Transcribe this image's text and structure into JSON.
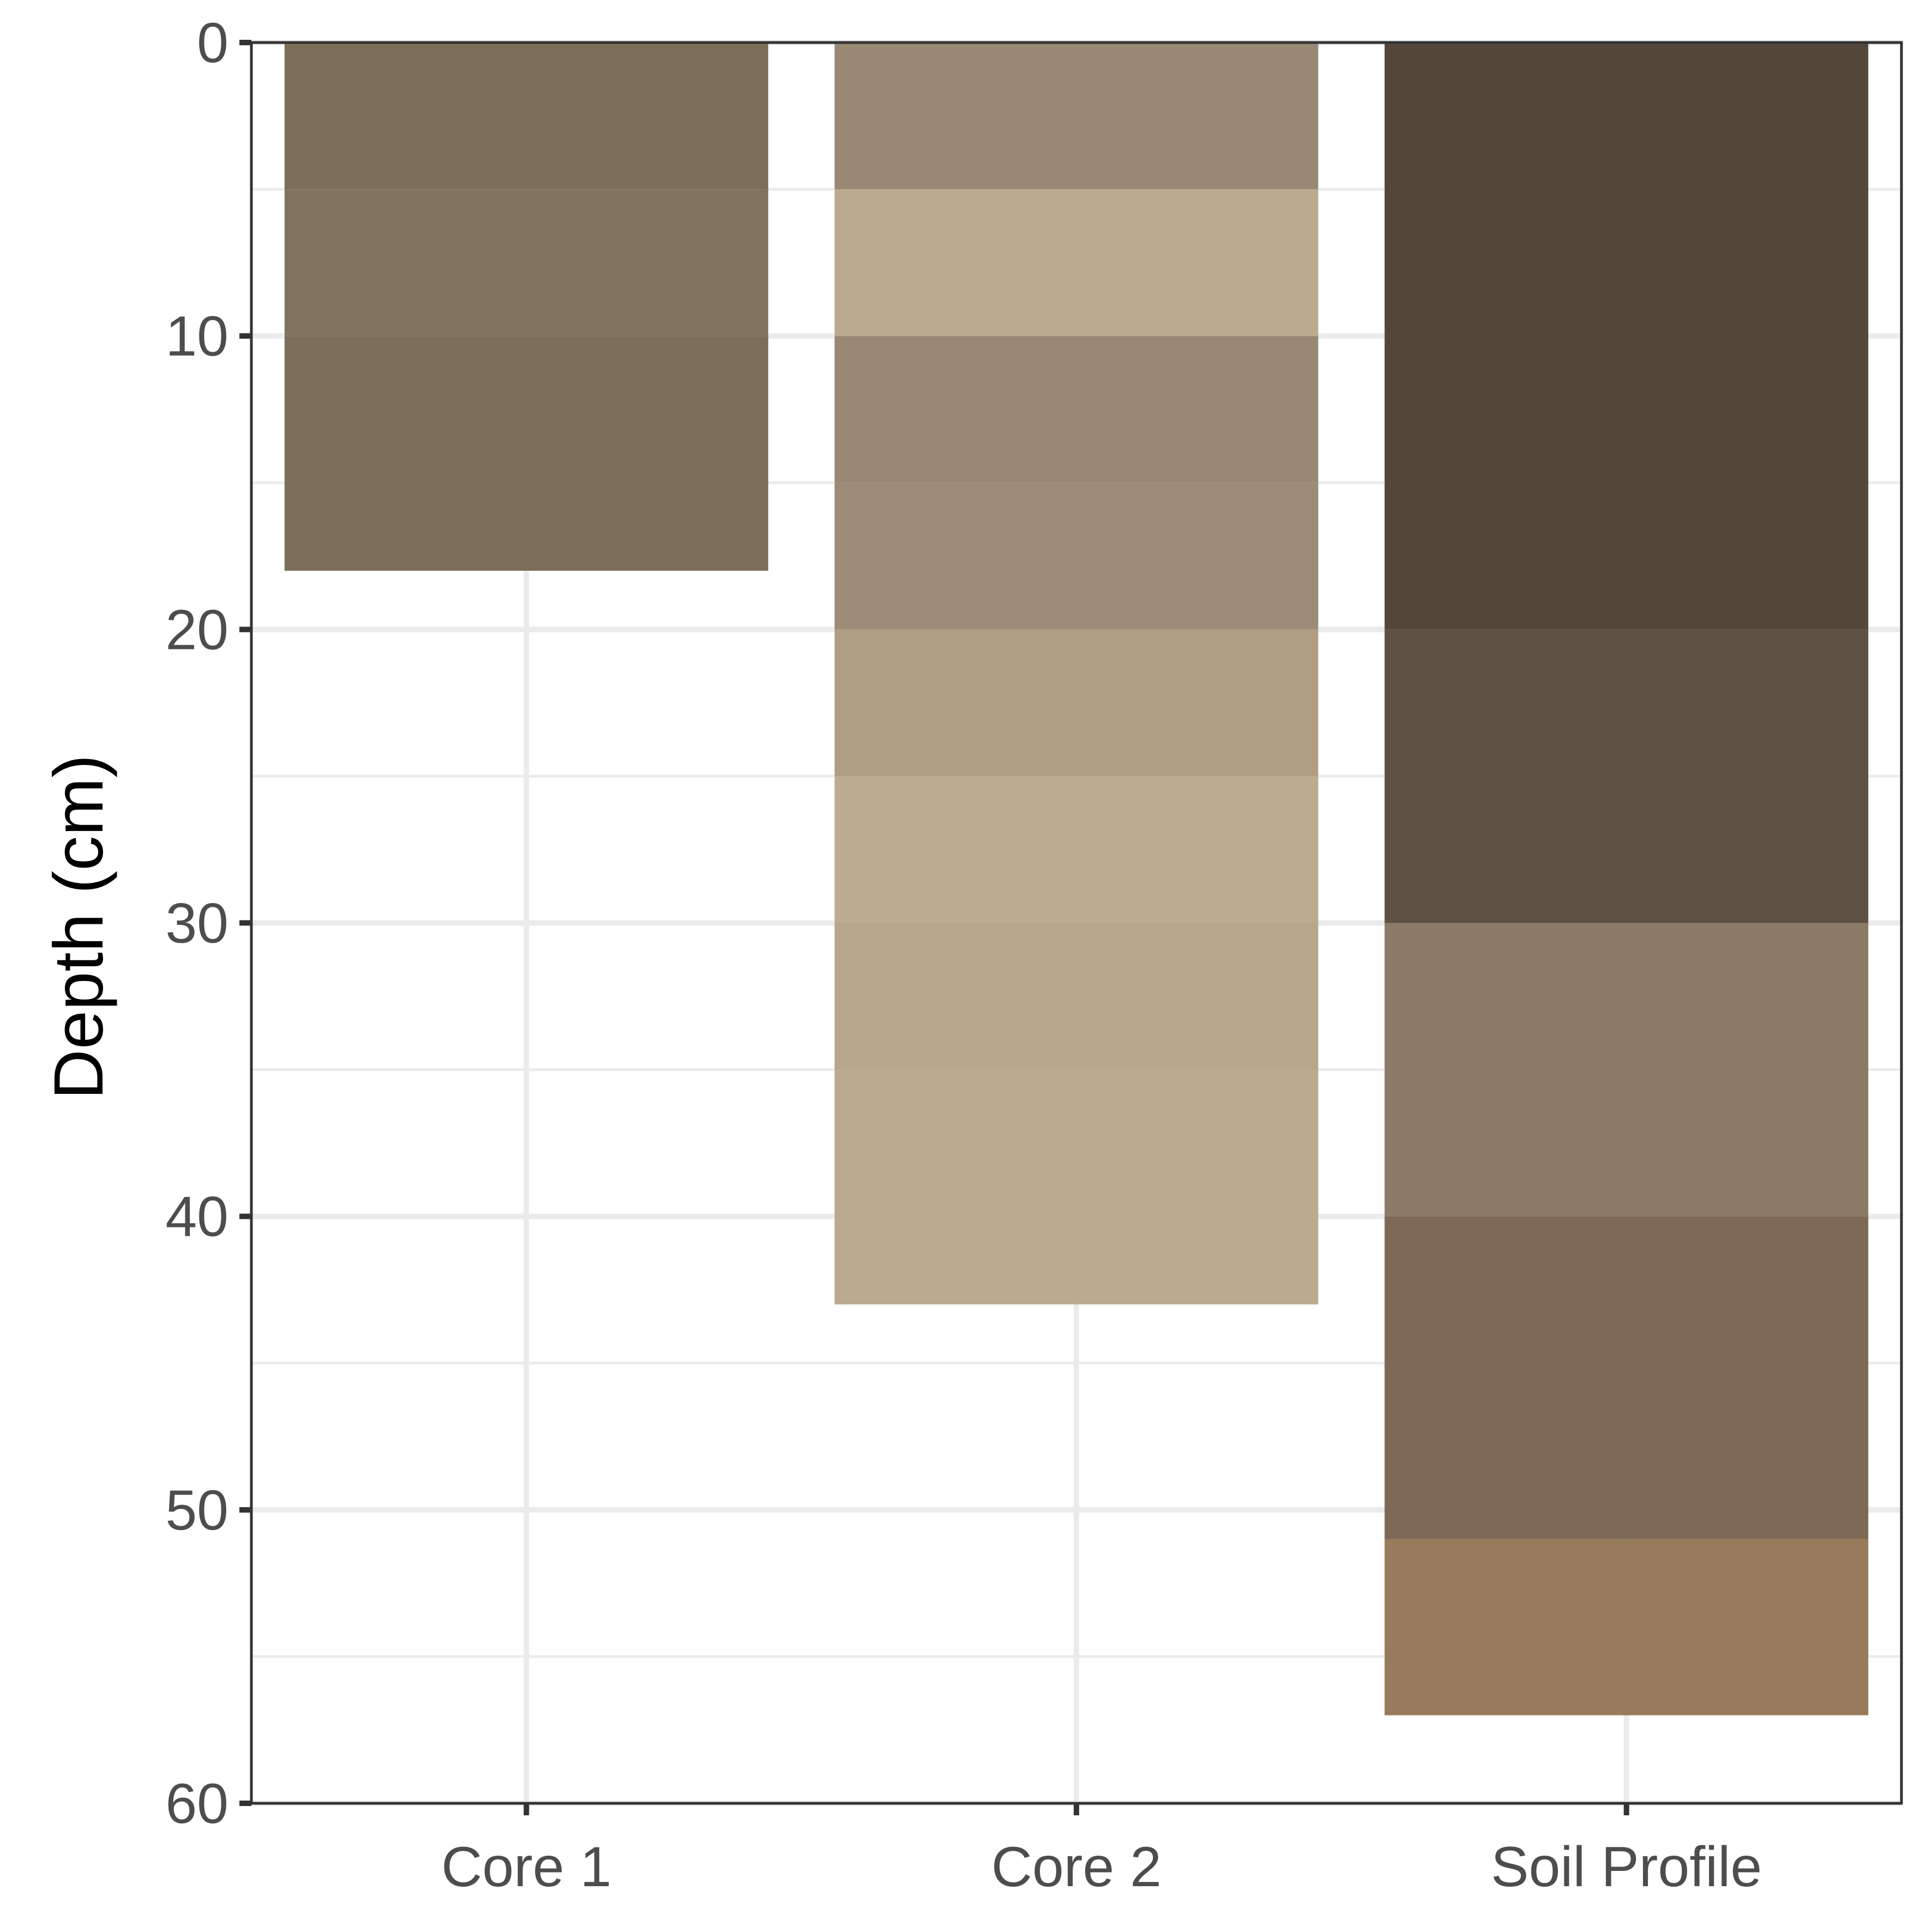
{
  "chart_data": {
    "type": "bar",
    "subtype": "stacked-depth-profile",
    "title": "",
    "xlabel": "",
    "ylabel": "Depth (cm)",
    "y_reversed": true,
    "ylim": [
      0,
      60
    ],
    "y_ticks": [
      0,
      10,
      20,
      30,
      40,
      50,
      60
    ],
    "y_minor_gridlines": [
      5,
      15,
      25,
      35,
      45,
      55
    ],
    "grid": true,
    "legend": "none",
    "categories": [
      "Core 1",
      "Core 2",
      "Soil Profile"
    ],
    "columns": [
      {
        "name": "Core 1",
        "layers": [
          {
            "top": 0,
            "bottom": 5,
            "color": "#7d6d5b"
          },
          {
            "top": 5,
            "bottom": 10,
            "color": "#82735f"
          },
          {
            "top": 10,
            "bottom": 18,
            "color": "#7d6d5b"
          }
        ]
      },
      {
        "name": "Core 2",
        "layers": [
          {
            "top": 0,
            "bottom": 5,
            "color": "#998874"
          },
          {
            "top": 5,
            "bottom": 10,
            "color": "#baaa90"
          },
          {
            "top": 10,
            "bottom": 15,
            "color": "#998874"
          },
          {
            "top": 15,
            "bottom": 20,
            "color": "#9b8b77"
          },
          {
            "top": 20,
            "bottom": 25,
            "color": "#b09e84"
          },
          {
            "top": 25,
            "bottom": 30,
            "color": "#bbab8f"
          },
          {
            "top": 30,
            "bottom": 35,
            "color": "#b6a68b"
          },
          {
            "top": 35,
            "bottom": 43,
            "color": "#baaa90"
          }
        ]
      },
      {
        "name": "Soil Profile",
        "layers": [
          {
            "top": 0,
            "bottom": 20,
            "color": "#53473b"
          },
          {
            "top": 20,
            "bottom": 30,
            "color": "#5e5145"
          },
          {
            "top": 30,
            "bottom": 40,
            "color": "#8b7a66"
          },
          {
            "top": 40,
            "bottom": 51,
            "color": "#7d6955"
          },
          {
            "top": 51,
            "bottom": 57,
            "color": "#977b5c"
          }
        ]
      }
    ]
  },
  "colors": {
    "panel_border": "#333333",
    "gridline": "#ebebeb",
    "tick_text": "#4d4d4d",
    "axis_title": "#000000"
  }
}
